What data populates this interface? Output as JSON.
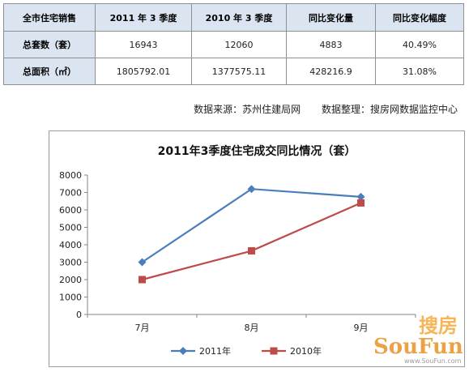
{
  "table": {
    "headers": [
      "全市住宅销售",
      "2011 年 3 季度",
      "2010 年 3 季度",
      "同比变化量",
      "同比变化幅度"
    ],
    "rows": [
      [
        "总套数（套）",
        "16943",
        "12060",
        "4883",
        "40.49%"
      ],
      [
        "总面积（㎡）",
        "1805792.01",
        "1377575.11",
        "428216.9",
        "31.08%"
      ]
    ]
  },
  "source": {
    "data_source": "数据来源：苏州住建局网",
    "data_compiler": "数据整理：搜房网数据监控中心"
  },
  "chart_data": {
    "type": "line",
    "title": "2011年3季度住宅成交同比情况（套）",
    "categories": [
      "7月",
      "8月",
      "9月"
    ],
    "series": [
      {
        "name": "2011年",
        "values": [
          3000,
          7200,
          6750
        ],
        "color": "#4a7ebb",
        "marker": "diamond"
      },
      {
        "name": "2010年",
        "values": [
          2000,
          3650,
          6400
        ],
        "color": "#be4b48",
        "marker": "square"
      }
    ],
    "ylim": [
      0,
      8000
    ],
    "yticks": [
      "0",
      "1000",
      "2000",
      "3000",
      "4000",
      "5000",
      "6000",
      "7000",
      "8000"
    ],
    "grid": false,
    "legend": "bottom"
  },
  "watermark": {
    "chinese": "搜房",
    "brand": "SouFun",
    "url": "www.SouFun.com"
  }
}
